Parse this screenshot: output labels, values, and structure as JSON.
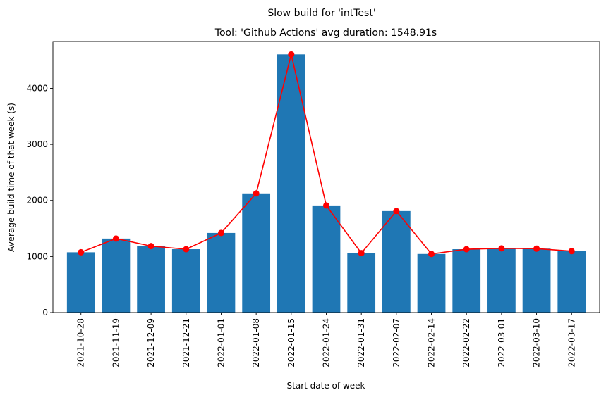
{
  "chart_data": {
    "type": "bar",
    "suptitle": "Slow build for 'intTest'",
    "title": "Tool: 'Github Actions' avg duration: 1548.91s",
    "xlabel": "Start date of week",
    "ylabel": "Average build time of that week (s)",
    "categories": [
      "2021-10-28",
      "2021-11-19",
      "2021-12-09",
      "2021-12-21",
      "2022-01-01",
      "2022-01-08",
      "2022-01-15",
      "2022-01-24",
      "2022-01-31",
      "2022-02-07",
      "2022-02-14",
      "2022-02-22",
      "2022-03-01",
      "2022-03-10",
      "2022-03-17"
    ],
    "series": [
      {
        "type": "bar",
        "values": [
          1075,
          1320,
          1185,
          1130,
          1420,
          2125,
          4605,
          1910,
          1060,
          1810,
          1045,
          1130,
          1145,
          1140,
          1095
        ]
      },
      {
        "type": "line",
        "values": [
          1075,
          1320,
          1185,
          1130,
          1420,
          2125,
          4605,
          1910,
          1060,
          1810,
          1045,
          1130,
          1145,
          1140,
          1095
        ]
      }
    ],
    "yticks": [
      0,
      1000,
      2000,
      3000,
      4000
    ],
    "ylim": [
      0,
      4835
    ],
    "grid": false,
    "colors": {
      "bar": "#1f77b4",
      "line": "#ff0000",
      "marker": "#ff0000"
    }
  }
}
